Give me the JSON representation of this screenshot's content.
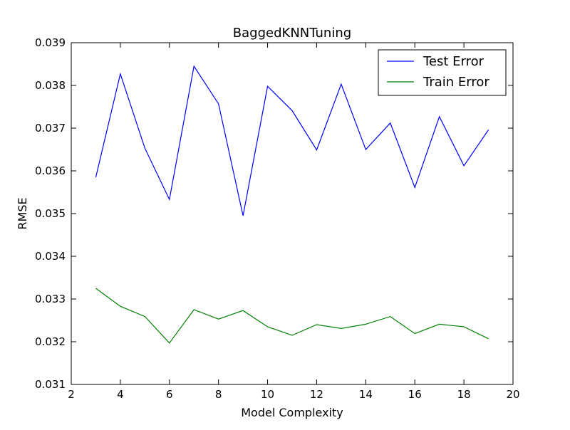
{
  "chart_data": {
    "type": "line",
    "title": "BaggedKNNTuning",
    "xlabel": "Model Complexity",
    "ylabel": "RMSE",
    "xlim": [
      2,
      20
    ],
    "ylim": [
      0.031,
      0.039
    ],
    "xticks": [
      2,
      4,
      6,
      8,
      10,
      12,
      14,
      16,
      18,
      20
    ],
    "xtick_labels": [
      "2",
      "4",
      "6",
      "8",
      "10",
      "12",
      "14",
      "16",
      "18",
      "20"
    ],
    "yticks": [
      0.031,
      0.032,
      0.033,
      0.034,
      0.035,
      0.036,
      0.037,
      0.038,
      0.039
    ],
    "ytick_labels": [
      "0.031",
      "0.032",
      "0.033",
      "0.034",
      "0.035",
      "0.036",
      "0.037",
      "0.038",
      "0.039"
    ],
    "grid": false,
    "legend_position": "top-right",
    "x": [
      3,
      4,
      5,
      6,
      7,
      8,
      9,
      10,
      11,
      12,
      13,
      14,
      15,
      16,
      17,
      18,
      19
    ],
    "series": [
      {
        "name": "Test Error",
        "color": "#0000ff",
        "values": [
          0.03585,
          0.03827,
          0.03653,
          0.03533,
          0.03845,
          0.03757,
          0.03495,
          0.03798,
          0.03741,
          0.03649,
          0.03803,
          0.0365,
          0.03712,
          0.03561,
          0.03727,
          0.03612,
          0.03696
        ]
      },
      {
        "name": "Train Error",
        "color": "#008000",
        "values": [
          0.03325,
          0.03283,
          0.03259,
          0.03197,
          0.03275,
          0.03253,
          0.03273,
          0.03235,
          0.03215,
          0.0324,
          0.03231,
          0.03241,
          0.03259,
          0.03219,
          0.03241,
          0.03235,
          0.03207
        ]
      }
    ]
  }
}
